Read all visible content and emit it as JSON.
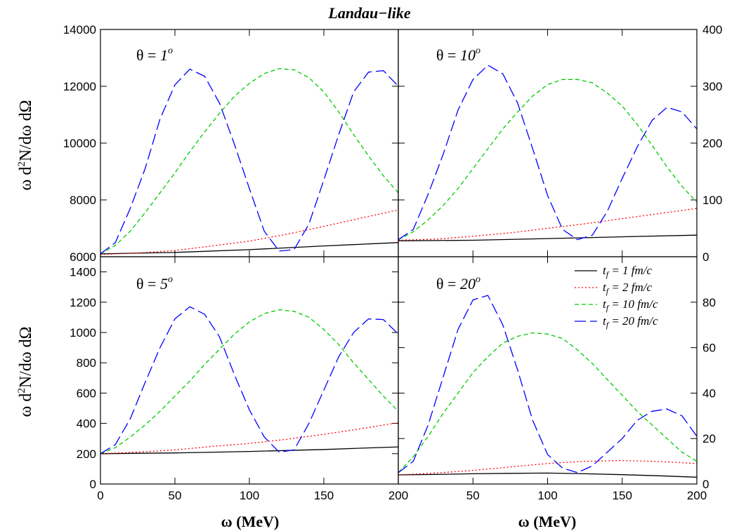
{
  "title": "Landau−like",
  "chart_data": [
    {
      "type": "line",
      "panel": "top-left",
      "annotation": {
        "prefix": "θ = ",
        "value": "1",
        "sup": "o"
      },
      "xlim": [
        0,
        200
      ],
      "ylim": [
        6000,
        14000
      ],
      "yticks": [
        6000,
        8000,
        10000,
        12000,
        14000
      ],
      "series": [
        {
          "name": "t_f = 1 fm/c",
          "x": [
            0,
            50,
            100,
            150,
            200
          ],
          "y": [
            6100,
            6150,
            6250,
            6380,
            6500
          ]
        },
        {
          "name": "t_f = 2 fm/c",
          "x": [
            0,
            25,
            50,
            75,
            100,
            125,
            150,
            175,
            200
          ],
          "y": [
            6080,
            6130,
            6220,
            6380,
            6550,
            6790,
            7070,
            7360,
            7650
          ]
        },
        {
          "name": "t_f = 10 fm/c",
          "x": [
            0,
            10,
            20,
            30,
            40,
            50,
            60,
            70,
            80,
            90,
            100,
            110,
            120,
            130,
            140,
            150,
            160,
            170,
            180,
            190,
            200
          ],
          "y": [
            6100,
            6400,
            6900,
            7550,
            8250,
            8950,
            9700,
            10400,
            11050,
            11650,
            12100,
            12450,
            12620,
            12580,
            12300,
            11800,
            11100,
            10300,
            9550,
            8850,
            8250
          ]
        },
        {
          "name": "t_f = 20 fm/c",
          "x": [
            0,
            10,
            20,
            30,
            40,
            50,
            60,
            70,
            80,
            90,
            100,
            110,
            120,
            130,
            140,
            150,
            160,
            170,
            180,
            190,
            200
          ],
          "y": [
            6100,
            6500,
            7700,
            9100,
            10850,
            12050,
            12600,
            12350,
            11400,
            9950,
            8400,
            6900,
            6200,
            6250,
            7150,
            8700,
            10300,
            11800,
            12500,
            12550,
            12000
          ]
        }
      ]
    },
    {
      "type": "line",
      "panel": "top-right",
      "annotation": {
        "prefix": "θ = ",
        "value": "10",
        "sup": "o"
      },
      "xlim": [
        0,
        200
      ],
      "ylim": [
        0,
        400
      ],
      "yticks": [
        0,
        100,
        200,
        300,
        400
      ],
      "series": [
        {
          "name": "t_f = 1 fm/c",
          "x": [
            0,
            50,
            100,
            150,
            200
          ],
          "y": [
            28,
            29,
            32,
            35,
            38
          ]
        },
        {
          "name": "t_f = 2 fm/c",
          "x": [
            0,
            25,
            50,
            75,
            100,
            125,
            150,
            175,
            200
          ],
          "y": [
            29,
            31,
            36,
            42,
            50,
            58,
            67,
            76,
            85
          ]
        },
        {
          "name": "t_f = 10 fm/c",
          "x": [
            0,
            10,
            20,
            30,
            40,
            50,
            60,
            70,
            80,
            90,
            100,
            110,
            120,
            130,
            140,
            150,
            160,
            170,
            180,
            190,
            200
          ],
          "y": [
            30,
            44,
            65,
            90,
            120,
            155,
            190,
            225,
            255,
            283,
            303,
            312,
            312,
            306,
            288,
            265,
            233,
            196,
            158,
            124,
            96
          ]
        },
        {
          "name": "t_f = 20 fm/c",
          "x": [
            0,
            10,
            20,
            30,
            40,
            50,
            60,
            70,
            80,
            90,
            100,
            110,
            120,
            130,
            140,
            150,
            160,
            170,
            180,
            190,
            200
          ],
          "y": [
            30,
            48,
            110,
            180,
            258,
            312,
            337,
            322,
            270,
            190,
            108,
            48,
            30,
            38,
            80,
            138,
            193,
            240,
            263,
            255,
            225
          ]
        }
      ]
    },
    {
      "type": "line",
      "panel": "bottom-left",
      "annotation": {
        "prefix": "θ = ",
        "value": "5",
        "sup": "o"
      },
      "xlim": [
        0,
        200
      ],
      "ylim": [
        0,
        1500
      ],
      "yticks": [
        0,
        200,
        400,
        600,
        800,
        1000,
        1200,
        1400
      ],
      "series": [
        {
          "name": "t_f = 1 fm/c",
          "x": [
            0,
            50,
            100,
            150,
            200
          ],
          "y": [
            200,
            205,
            215,
            228,
            245
          ]
        },
        {
          "name": "t_f = 2 fm/c",
          "x": [
            0,
            25,
            50,
            75,
            100,
            125,
            150,
            175,
            200
          ],
          "y": [
            200,
            210,
            225,
            248,
            268,
            295,
            328,
            365,
            405
          ]
        },
        {
          "name": "t_f = 10 fm/c",
          "x": [
            0,
            10,
            20,
            30,
            40,
            50,
            60,
            70,
            80,
            90,
            100,
            110,
            120,
            130,
            140,
            150,
            160,
            170,
            180,
            190,
            200
          ],
          "y": [
            200,
            240,
            310,
            390,
            480,
            580,
            680,
            790,
            890,
            990,
            1070,
            1125,
            1150,
            1140,
            1100,
            1020,
            920,
            800,
            690,
            580,
            480
          ]
        },
        {
          "name": "t_f = 20 fm/c",
          "x": [
            0,
            10,
            20,
            30,
            40,
            50,
            60,
            70,
            80,
            90,
            100,
            110,
            120,
            130,
            140,
            150,
            160,
            170,
            180,
            190,
            200
          ],
          "y": [
            200,
            260,
            430,
            670,
            900,
            1090,
            1170,
            1120,
            970,
            720,
            490,
            310,
            210,
            225,
            400,
            620,
            840,
            1000,
            1090,
            1085,
            990
          ]
        }
      ]
    },
    {
      "type": "line",
      "panel": "bottom-right",
      "annotation": {
        "prefix": "θ = ",
        "value": "20",
        "sup": "o"
      },
      "xlim": [
        0,
        200
      ],
      "ylim": [
        0,
        100
      ],
      "yticks": [
        0,
        20,
        40,
        60,
        80
      ],
      "series": [
        {
          "name": "t_f = 1 fm/c",
          "x": [
            0,
            25,
            50,
            75,
            100,
            125,
            150,
            175,
            200
          ],
          "y": [
            4,
            4.2,
            4.5,
            4.7,
            4.8,
            4.5,
            4.1,
            3.6,
            3
          ]
        },
        {
          "name": "t_f = 2 fm/c",
          "x": [
            0,
            25,
            50,
            75,
            100,
            125,
            150,
            175,
            200
          ],
          "y": [
            4,
            4.8,
            6,
            7.5,
            9,
            10,
            10.3,
            9.9,
            9
          ]
        },
        {
          "name": "t_f = 10 fm/c",
          "x": [
            0,
            10,
            20,
            30,
            40,
            50,
            60,
            70,
            80,
            90,
            100,
            110,
            120,
            130,
            140,
            150,
            160,
            170,
            180,
            190,
            200
          ],
          "y": [
            5,
            12,
            21,
            31,
            40,
            49,
            56,
            62,
            65,
            66.5,
            66,
            64,
            59,
            53,
            46,
            39,
            32,
            26,
            20,
            14,
            10
          ]
        },
        {
          "name": "t_f = 20 fm/c",
          "x": [
            0,
            10,
            20,
            30,
            40,
            50,
            60,
            70,
            80,
            90,
            100,
            110,
            120,
            130,
            140,
            150,
            160,
            170,
            180,
            190,
            200
          ],
          "y": [
            5,
            10,
            26,
            47,
            68,
            81,
            83,
            70,
            50,
            28,
            13,
            7,
            5,
            8,
            14,
            20,
            28,
            32,
            33,
            30,
            21
          ]
        }
      ]
    }
  ],
  "axes": {
    "xticks": [
      0,
      50,
      100,
      150,
      200
    ],
    "xlabel": "ω (MeV)",
    "ylabel_pre": "ω d",
    "ylabel_sup": "2",
    "ylabel_post": "N/dω dΩ"
  },
  "legend": {
    "position": "top-right of bottom-right panel",
    "entries": [
      {
        "sub": "f",
        "text": " =   1 fm/c",
        "color": "#000000",
        "dash": ""
      },
      {
        "sub": "f",
        "text": " =   2 fm/c",
        "color": "#ff0000",
        "dash": "2,3"
      },
      {
        "sub": "f",
        "text": " = 10 fm/c",
        "color": "#00cc00",
        "dash": "6,4"
      },
      {
        "sub": "f",
        "text": " = 20 fm/c",
        "color": "#0000ff",
        "dash": "16,6"
      }
    ]
  },
  "series_styles": [
    {
      "color": "#000000",
      "dash": ""
    },
    {
      "color": "#ff0000",
      "dash": "2,3"
    },
    {
      "color": "#00cc00",
      "dash": "6,4"
    },
    {
      "color": "#0000ff",
      "dash": "16,6"
    }
  ]
}
